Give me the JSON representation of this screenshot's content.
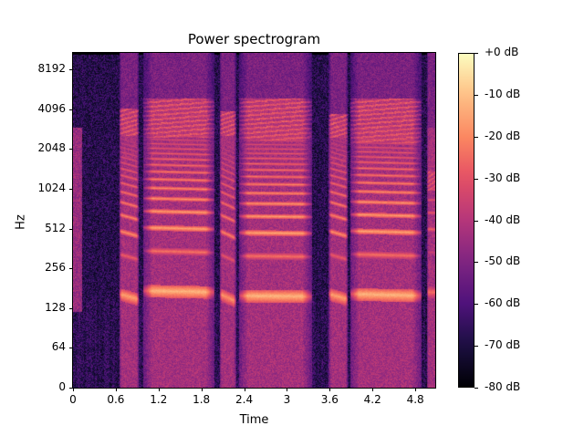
{
  "chart_data": {
    "type": "heatmap",
    "title": "Power spectrogram",
    "xlabel": "Time",
    "ylabel": "Hz",
    "xlim": [
      0,
      5.08
    ],
    "y_scale": "log2 (symlog)",
    "ylim_hz": [
      0,
      11025
    ],
    "x_ticks": [
      0,
      0.6,
      1.2,
      1.8,
      2.4,
      3,
      3.6,
      4.2,
      4.8
    ],
    "x_tick_labels": [
      "0",
      "0.6",
      "1.2",
      "1.8",
      "2.4",
      "3",
      "3.6",
      "4.2",
      "4.8"
    ],
    "y_ticks": [
      0,
      64,
      128,
      256,
      512,
      1024,
      2048,
      4096,
      8192
    ],
    "y_tick_labels": [
      "0",
      "64",
      "128",
      "256",
      "512",
      "1024",
      "2048",
      "4096",
      "8192"
    ],
    "colorbar": {
      "colormap": "magma",
      "range_db": [
        -80,
        0
      ],
      "ticks": [
        0,
        -10,
        -20,
        -30,
        -40,
        -50,
        -60,
        -70,
        -80
      ],
      "tick_labels": [
        "+0 dB",
        "-10 dB",
        "-20 dB",
        "-30 dB",
        "-40 dB",
        "-50 dB",
        "-60 dB",
        "-70 dB",
        "-80 dB"
      ]
    },
    "noise_floor_db": -68,
    "voiced_segments": [
      {
        "t_start": 0.64,
        "t_end": 0.92,
        "f0_hz": 165,
        "f0_end_hz": 150,
        "level_db": -10,
        "upper_band_hz": [
          2600,
          4200
        ]
      },
      {
        "t_start": 0.98,
        "t_end": 1.98,
        "f0_hz": 175,
        "f0_end_hz": 170,
        "level_db": -6,
        "upper_band_hz": [
          2500,
          5000
        ]
      },
      {
        "t_start": 2.05,
        "t_end": 2.28,
        "f0_hz": 165,
        "f0_end_hz": 145,
        "level_db": -12,
        "upper_band_hz": [
          2600,
          4000
        ]
      },
      {
        "t_start": 2.32,
        "t_end": 3.34,
        "f0_hz": 160,
        "f0_end_hz": 158,
        "level_db": -6,
        "upper_band_hz": [
          2400,
          5000
        ]
      },
      {
        "t_start": 3.58,
        "t_end": 3.85,
        "f0_hz": 165,
        "f0_end_hz": 150,
        "level_db": -10,
        "upper_band_hz": [
          2500,
          3800
        ]
      },
      {
        "t_start": 3.88,
        "t_end": 4.88,
        "f0_hz": 165,
        "f0_end_hz": 160,
        "level_db": -6,
        "upper_band_hz": [
          2300,
          5000
        ]
      },
      {
        "t_start": 4.96,
        "t_end": 5.08,
        "f0_hz": 170,
        "f0_end_hz": 170,
        "level_db": -18,
        "upper_band_hz": [
          1000,
          1400
        ]
      }
    ],
    "background_band": {
      "t_start": 0.0,
      "t_end": 0.12,
      "f_range_hz": [
        120,
        3000
      ],
      "level_db": -45
    }
  }
}
